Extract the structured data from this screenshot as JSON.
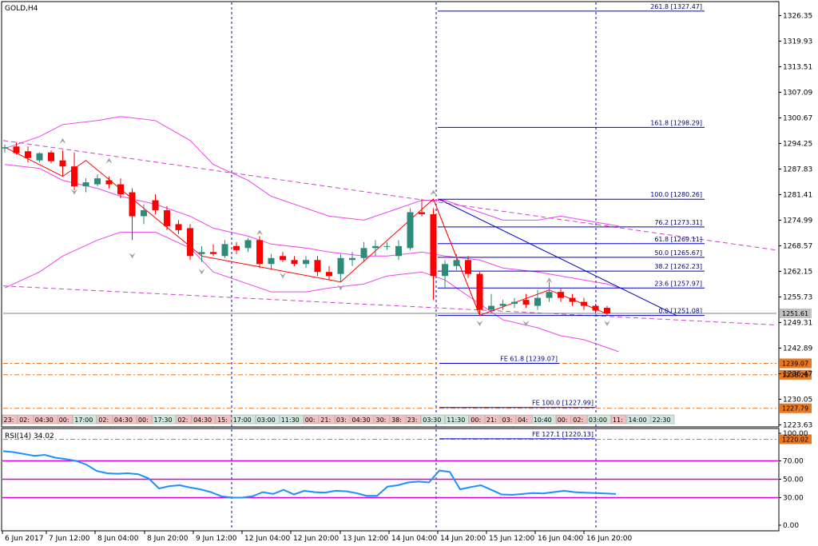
{
  "header": {
    "symbol": "GOLD,H4",
    "rsi_label": "RSI(14) 34.02"
  },
  "colors": {
    "up_candle": "#2e8b7a",
    "down_candle": "#ff0000",
    "bollinger": "#ee44ee",
    "zigzag": "#ff0000",
    "trend_channel": "#cc44cc",
    "fib": "#0000cc",
    "levels": "#e87722",
    "rsi_line": "#1e90ff",
    "rsi_levels": "#dd00dd",
    "bid_line": "#808080",
    "separator": "#0000ff"
  },
  "chart_data": [
    {
      "type": "candlestick",
      "title": "GOLD,H4",
      "ylim": [
        1218.5,
        1331.0
      ],
      "price_ticks": [
        "1326.35",
        "1319.93",
        "1313.51",
        "1307.09",
        "1300.67",
        "1294.25",
        "1287.83",
        "1281.41",
        "1274.99",
        "1268.57",
        "1262.15",
        "1255.73",
        "1249.31",
        "1242.89",
        "1236.47",
        "1230.05",
        "1223.63"
      ],
      "time_ticks": [
        "6 Jun 2017",
        "7 Jun 12:00",
        "8 Jun 04:00",
        "8 Jun 20:00",
        "9 Jun 12:00",
        "12 Jun 04:00",
        "12 Jun 20:00",
        "13 Jun 12:00",
        "14 Jun 04:00",
        "14 Jun 20:00",
        "15 Jun 12:00",
        "16 Jun 04:00",
        "16 Jun 20:00"
      ],
      "candles": [
        {
          "o": 1293.0,
          "h": 1294.0,
          "l": 1292.0,
          "c": 1293.3
        },
        {
          "o": 1293.5,
          "h": 1294.5,
          "l": 1291.5,
          "c": 1291.8
        },
        {
          "o": 1292.3,
          "h": 1293.5,
          "l": 1289.5,
          "c": 1290.6
        },
        {
          "o": 1290.0,
          "h": 1292.0,
          "l": 1289.5,
          "c": 1291.8
        },
        {
          "o": 1292.0,
          "h": 1292.5,
          "l": 1289.3,
          "c": 1289.8
        },
        {
          "o": 1290.0,
          "h": 1292.5,
          "l": 1286.0,
          "c": 1288.5
        },
        {
          "o": 1288.5,
          "h": 1292.0,
          "l": 1282.5,
          "c": 1283.5
        },
        {
          "o": 1283.5,
          "h": 1285.5,
          "l": 1282.0,
          "c": 1284.5
        },
        {
          "o": 1284.0,
          "h": 1286.5,
          "l": 1283.5,
          "c": 1285.5
        },
        {
          "o": 1285.0,
          "h": 1286.0,
          "l": 1283.0,
          "c": 1284.0
        },
        {
          "o": 1284.0,
          "h": 1285.5,
          "l": 1280.5,
          "c": 1281.5
        },
        {
          "o": 1282.0,
          "h": 1283.0,
          "l": 1270.0,
          "c": 1276.0
        },
        {
          "o": 1276.0,
          "h": 1279.0,
          "l": 1274.0,
          "c": 1277.5
        },
        {
          "o": 1280.0,
          "h": 1281.5,
          "l": 1276.5,
          "c": 1277.5
        },
        {
          "o": 1277.5,
          "h": 1278.5,
          "l": 1272.5,
          "c": 1273.5
        },
        {
          "o": 1274.0,
          "h": 1275.0,
          "l": 1271.5,
          "c": 1272.5
        },
        {
          "o": 1273.0,
          "h": 1274.0,
          "l": 1265.0,
          "c": 1266.0
        },
        {
          "o": 1266.5,
          "h": 1268.5,
          "l": 1264.5,
          "c": 1267.0
        },
        {
          "o": 1267.0,
          "h": 1269.0,
          "l": 1266.0,
          "c": 1266.5
        },
        {
          "o": 1266.0,
          "h": 1270.0,
          "l": 1265.5,
          "c": 1269.0
        },
        {
          "o": 1268.5,
          "h": 1269.5,
          "l": 1266.5,
          "c": 1267.5
        },
        {
          "o": 1268.0,
          "h": 1270.5,
          "l": 1267.0,
          "c": 1270.0
        },
        {
          "o": 1270.0,
          "h": 1271.0,
          "l": 1263.0,
          "c": 1264.0
        },
        {
          "o": 1264.0,
          "h": 1266.5,
          "l": 1262.5,
          "c": 1265.5
        },
        {
          "o": 1266.0,
          "h": 1267.0,
          "l": 1264.5,
          "c": 1265.0
        },
        {
          "o": 1265.0,
          "h": 1266.0,
          "l": 1263.5,
          "c": 1264.0
        },
        {
          "o": 1264.0,
          "h": 1266.0,
          "l": 1263.0,
          "c": 1265.0
        },
        {
          "o": 1265.0,
          "h": 1266.0,
          "l": 1261.0,
          "c": 1262.0
        },
        {
          "o": 1262.0,
          "h": 1263.5,
          "l": 1260.0,
          "c": 1261.0
        },
        {
          "o": 1261.5,
          "h": 1266.5,
          "l": 1259.5,
          "c": 1265.5
        },
        {
          "o": 1265.0,
          "h": 1267.0,
          "l": 1263.5,
          "c": 1265.5
        },
        {
          "o": 1265.5,
          "h": 1269.5,
          "l": 1264.5,
          "c": 1268.0
        },
        {
          "o": 1268.0,
          "h": 1270.0,
          "l": 1266.0,
          "c": 1268.5
        },
        {
          "o": 1268.5,
          "h": 1269.5,
          "l": 1267.5,
          "c": 1268.5
        },
        {
          "o": 1266.0,
          "h": 1270.0,
          "l": 1265.0,
          "c": 1268.5
        },
        {
          "o": 1268.0,
          "h": 1278.0,
          "l": 1267.5,
          "c": 1277.0
        },
        {
          "o": 1277.0,
          "h": 1280.3,
          "l": 1276.0,
          "c": 1276.5
        },
        {
          "o": 1276.5,
          "h": 1278.0,
          "l": 1255.0,
          "c": 1261.0
        },
        {
          "o": 1261.0,
          "h": 1265.0,
          "l": 1258.0,
          "c": 1264.0
        },
        {
          "o": 1263.5,
          "h": 1266.5,
          "l": 1262.5,
          "c": 1265.0
        },
        {
          "o": 1265.0,
          "h": 1266.0,
          "l": 1260.5,
          "c": 1261.5
        },
        {
          "o": 1261.5,
          "h": 1262.0,
          "l": 1251.1,
          "c": 1252.5
        },
        {
          "o": 1252.5,
          "h": 1256.5,
          "l": 1251.5,
          "c": 1253.5
        },
        {
          "o": 1253.5,
          "h": 1255.0,
          "l": 1252.5,
          "c": 1254.0
        },
        {
          "o": 1254.0,
          "h": 1255.5,
          "l": 1253.0,
          "c": 1254.5
        },
        {
          "o": 1255.0,
          "h": 1256.5,
          "l": 1253.0,
          "c": 1253.8
        },
        {
          "o": 1253.5,
          "h": 1257.5,
          "l": 1252.5,
          "c": 1255.5
        },
        {
          "o": 1255.5,
          "h": 1259.5,
          "l": 1254.5,
          "c": 1257.0
        },
        {
          "o": 1257.0,
          "h": 1258.0,
          "l": 1254.5,
          "c": 1255.5
        },
        {
          "o": 1255.5,
          "h": 1256.5,
          "l": 1253.5,
          "c": 1254.5
        },
        {
          "o": 1254.5,
          "h": 1255.5,
          "l": 1252.5,
          "c": 1253.5
        },
        {
          "o": 1253.5,
          "h": 1254.0,
          "l": 1251.5,
          "c": 1252.3
        },
        {
          "o": 1253.0,
          "h": 1253.5,
          "l": 1251.2,
          "c": 1251.6
        }
      ],
      "bid": "1251.61",
      "fibonacci": [
        {
          "label": "261.8 [1327.47]",
          "price": 1327.47
        },
        {
          "label": "161.8 [1298.29]",
          "price": 1298.29
        },
        {
          "label": "100.0 [1280.26]",
          "price": 1280.26
        },
        {
          "label": "76.2 [1273.31]",
          "price": 1273.31
        },
        {
          "label": "61.8 [1269.11]",
          "price": 1269.11
        },
        {
          "label": "50.0 [1265.67]",
          "price": 1265.67
        },
        {
          "label": "38.2 [1262.23]",
          "price": 1262.23
        },
        {
          "label": "23.6 [1257.97]",
          "price": 1257.97
        },
        {
          "label": "0.0 [1251.08]",
          "price": 1251.08
        }
      ],
      "expansion": [
        {
          "label": "FE 61.8 [1239.07]",
          "price": 1239.07
        },
        {
          "label": "FE 100.0 [1227.99]",
          "price": 1227.99
        },
        {
          "label": "FE 127.1 [1220.13]",
          "price": 1220.13
        }
      ],
      "levels": [
        {
          "label": "1239.07",
          "price": 1239.07
        },
        {
          "label": "1236.20",
          "price": 1236.2
        },
        {
          "label": "1227.79",
          "price": 1227.79
        },
        {
          "label": "1220.02",
          "price": 1220.02
        }
      ],
      "session_tags": [
        "23:",
        "02:",
        "04:30",
        "00:",
        "17:00",
        "02:",
        "04:30",
        "00:",
        "17:30",
        "02:",
        "04:30",
        "15:",
        "17:00",
        "03:00",
        "11:30",
        "00:",
        "21:",
        "03:",
        "04:30",
        "30:",
        "38:",
        "23:",
        "03:30",
        "11:30",
        "00:",
        "21:",
        "03:",
        "04:",
        "10:40",
        "00:",
        "02:",
        "03:00",
        "11:",
        "14:00",
        "22:30"
      ]
    },
    {
      "type": "line",
      "title": "RSI(14) 34.02",
      "ylim": [
        0,
        100
      ],
      "y_ticks": [
        "100.00",
        "70.00",
        "50.00",
        "30.00",
        "0.00"
      ],
      "levels": [
        70,
        50,
        30
      ],
      "values": [
        80.5,
        79.5,
        77.5,
        75.5,
        76.5,
        73.5,
        72.0,
        70.0,
        66.0,
        59.0,
        56.5,
        56.0,
        56.5,
        55.5,
        51.0,
        40.0,
        42.5,
        43.5,
        41.0,
        39.0,
        36.0,
        31.5,
        30.0,
        30.0,
        31.5,
        36.0,
        34.0,
        38.5,
        33.5,
        37.5,
        36.0,
        35.5,
        37.5,
        37.0,
        35.0,
        32.0,
        32.0,
        42.0,
        43.5,
        46.5,
        47.5,
        46.5,
        59.5,
        58.0,
        39.0,
        41.5,
        43.5,
        38.5,
        33.5,
        33.0,
        34.0,
        35.0,
        34.5,
        36.0,
        37.5,
        36.0,
        35.5,
        35.0,
        34.5,
        34.0
      ]
    }
  ]
}
